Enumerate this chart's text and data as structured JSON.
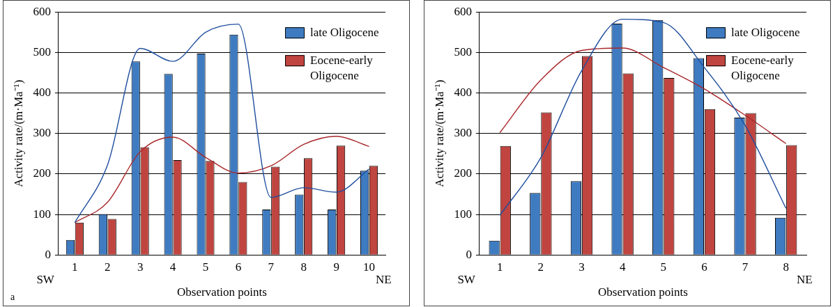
{
  "chart_data": [
    {
      "type": "bar",
      "xlabel": "Observation points",
      "ylabel": "Activity rate/(m·Ma⁻¹)",
      "categories": [
        "1",
        "2",
        "3",
        "4",
        "5",
        "6",
        "7",
        "8",
        "9",
        "10"
      ],
      "ylim": [
        0,
        600
      ],
      "yticks": [
        0,
        100,
        200,
        300,
        400,
        500,
        600
      ],
      "grid": "y",
      "legend": "top right",
      "annotations": [
        "SW",
        "NE",
        "a"
      ],
      "series": [
        {
          "name": "late Oligocene",
          "color": "#3f7bc1",
          "values": [
            37,
            101,
            478,
            447,
            497,
            544,
            112,
            149,
            112,
            208
          ]
        },
        {
          "name": "Eocene-early Oligocene",
          "color": "#c0443f",
          "values": [
            80,
            89,
            266,
            234,
            232,
            180,
            218,
            239,
            270,
            220
          ]
        },
        {
          "type": "line",
          "color": "#1f4e9e",
          "marker": "none",
          "values": [
            80,
            222,
            510,
            478,
            550,
            570,
            142,
            166,
            155,
            212
          ]
        },
        {
          "type": "line",
          "color": "#a8272a",
          "marker": "none",
          "values": [
            80,
            130,
            255,
            291,
            241,
            202,
            220,
            273,
            293,
            268
          ]
        }
      ]
    },
    {
      "type": "bar",
      "xlabel": "Observation points",
      "ylabel": "Activity rate/(m·Ma⁻¹)",
      "categories": [
        "1",
        "2",
        "3",
        "4",
        "5",
        "6",
        "7",
        "8"
      ],
      "ylim": [
        0,
        600
      ],
      "yticks": [
        0,
        100,
        200,
        300,
        400,
        500,
        600
      ],
      "grid": "y",
      "legend": "top right",
      "annotations": [
        "SW",
        "NE"
      ],
      "series": [
        {
          "name": "late Oligocene",
          "color": "#3f7bc1",
          "values": [
            35,
            153,
            182,
            571,
            580,
            486,
            339,
            92
          ]
        },
        {
          "name": "Eocene-early Oligocene",
          "color": "#c0443f",
          "values": [
            269,
            352,
            491,
            448,
            437,
            360,
            350,
            271
          ]
        },
        {
          "type": "line",
          "color": "#1f4e9e",
          "marker": "none",
          "values": [
            98,
            240,
            455,
            582,
            574,
            463,
            320,
            115
          ]
        },
        {
          "type": "line",
          "color": "#a8272a",
          "marker": "none",
          "values": [
            302,
            432,
            505,
            511,
            463,
            410,
            345,
            275
          ]
        }
      ]
    }
  ]
}
